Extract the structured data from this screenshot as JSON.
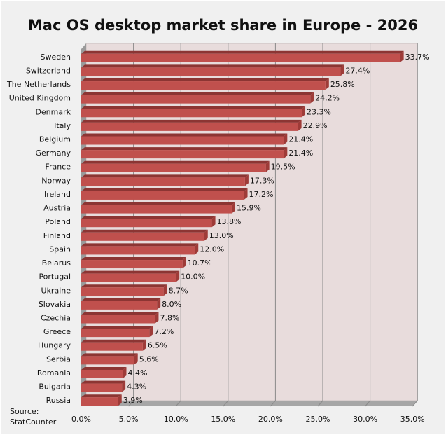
{
  "chart_data": {
    "type": "bar",
    "orientation": "horizontal",
    "style": "3d",
    "title": "Mac OS desktop market share in Europe - 2026",
    "source_label": "Source:",
    "source_name": "StatCounter",
    "categories": [
      "Sweden",
      "Switzerland",
      "The Netherlands",
      "United Kingdom",
      "Denmark",
      "Italy",
      "Belgium",
      "Germany",
      "France",
      "Norway",
      "Ireland",
      "Austria",
      "Poland",
      "Finland",
      "Spain",
      "Belarus",
      "Portugal",
      "Ukraine",
      "Slovakia",
      "Czechia",
      "Greece",
      "Hungary",
      "Serbia",
      "Romania",
      "Bulgaria",
      "Russia"
    ],
    "values": [
      33.7,
      27.4,
      25.8,
      24.2,
      23.3,
      22.9,
      21.4,
      21.4,
      19.5,
      17.3,
      17.2,
      15.9,
      13.8,
      13.0,
      12.0,
      10.7,
      10.0,
      8.7,
      8.0,
      7.8,
      7.2,
      6.5,
      5.6,
      4.4,
      4.3,
      3.9
    ],
    "value_labels": [
      "33.7%",
      "27.4%",
      "25.8%",
      "24.2%",
      "23.3%",
      "22.9%",
      "21.4%",
      "21.4%",
      "19.5%",
      "17.3%",
      "17.2%",
      "15.9%",
      "13.8%",
      "13.0%",
      "12.0%",
      "10.7%",
      "10.0%",
      "8.7%",
      "8.0%",
      "7.8%",
      "7.2%",
      "6.5%",
      "5.6%",
      "4.4%",
      "4.3%",
      "3.9%"
    ],
    "xlim": [
      0,
      35
    ],
    "xticks": [
      "0.0%",
      "5.0%",
      "10.0%",
      "15.0%",
      "20.0%",
      "25.0%",
      "30.0%",
      "35.0%"
    ],
    "grid": true,
    "legend": "none",
    "colors": {
      "bar": "#c0504d",
      "bar_dark": "#8c3533",
      "wall": "#e8dcdc",
      "floor": "#a6a6a6"
    }
  }
}
